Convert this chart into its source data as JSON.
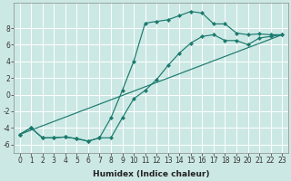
{
  "xlabel": "Humidex (Indice chaleur)",
  "background_color": "#cce8e4",
  "grid_color": "#ffffff",
  "line_color": "#1a7a6e",
  "xlim": [
    -0.5,
    23.5
  ],
  "ylim": [
    -7.0,
    11.0
  ],
  "xticks": [
    0,
    1,
    2,
    3,
    4,
    5,
    6,
    7,
    8,
    9,
    10,
    11,
    12,
    13,
    14,
    15,
    16,
    17,
    18,
    19,
    20,
    21,
    22,
    23
  ],
  "yticks": [
    -6,
    -4,
    -2,
    0,
    2,
    4,
    6,
    8
  ],
  "line1_x": [
    0,
    1,
    2,
    3,
    4,
    5,
    6,
    7,
    8,
    9,
    10,
    11,
    12,
    13,
    14,
    15,
    16,
    17,
    18,
    19,
    20,
    21,
    22,
    23
  ],
  "line1_y": [
    -4.8,
    -4.0,
    -5.2,
    -5.2,
    -5.1,
    -5.3,
    -5.6,
    -5.2,
    -2.8,
    0.5,
    4.0,
    8.6,
    8.8,
    9.0,
    9.5,
    10.0,
    9.8,
    8.5,
    8.5,
    7.4,
    7.2,
    7.3,
    7.2,
    7.2
  ],
  "line1_markers": true,
  "line2_x": [
    0,
    23
  ],
  "line2_y": [
    -4.8,
    7.2
  ],
  "line2_markers": false,
  "line3_x": [
    0,
    1,
    2,
    3,
    4,
    5,
    6,
    7,
    8,
    9,
    10,
    11,
    12,
    13,
    14,
    15,
    16,
    17,
    18,
    19,
    20,
    21,
    22,
    23
  ],
  "line3_y": [
    -4.8,
    -4.0,
    -5.2,
    -5.2,
    -5.1,
    -5.3,
    -5.6,
    -5.2,
    -5.2,
    -2.8,
    -0.5,
    0.5,
    1.8,
    3.5,
    5.0,
    6.2,
    7.0,
    7.2,
    6.5,
    6.5,
    6.0,
    6.8,
    7.0,
    7.2
  ],
  "line3_markers": true,
  "xlabel_fontsize": 6.5,
  "tick_fontsize": 5.5
}
